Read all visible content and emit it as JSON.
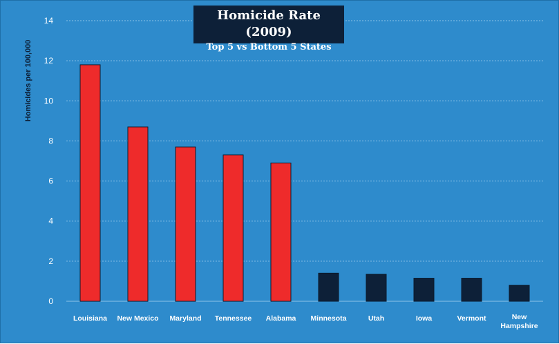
{
  "chart_data": {
    "type": "bar",
    "title": "Homicide Rate (2009)",
    "subtitle": "Top 5 vs Bottom 5 States",
    "xlabel": "",
    "ylabel": "Homicides per 100,000",
    "ylim": [
      0,
      14
    ],
    "yticks": [
      "0",
      "2",
      "4",
      "6",
      "8",
      "10",
      "12",
      "14"
    ],
    "grid": true,
    "categories": [
      "Louisiana",
      "New Mexico",
      "Maryland",
      "Tennessee",
      "Alabama",
      "Minnesota",
      "Utah",
      "Iowa",
      "Vermont",
      "New Hampshire"
    ],
    "values": [
      11.8,
      8.7,
      7.7,
      7.3,
      6.9,
      1.4,
      1.35,
      1.15,
      1.15,
      0.8
    ],
    "bar_colors": [
      "#ee2b2b",
      "#ee2b2b",
      "#ee2b2b",
      "#ee2b2b",
      "#ee2b2b",
      "#0d2038",
      "#0d2038",
      "#0d2038",
      "#0d2038",
      "#0d2038"
    ],
    "colors": {
      "background": "#2e8bcc",
      "top": "#ee2b2b",
      "bottom": "#0d2038",
      "grid": "#8ec3e8",
      "text": "#ffffff"
    }
  }
}
